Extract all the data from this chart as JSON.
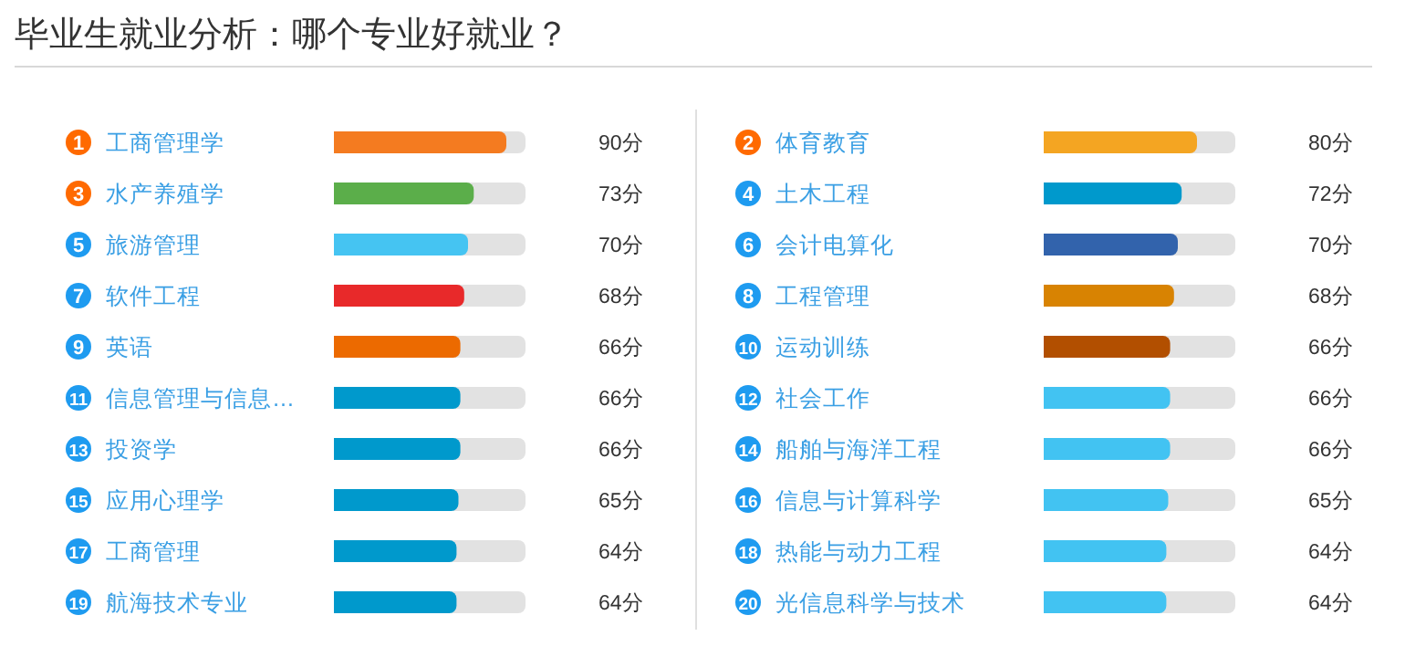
{
  "chart_data": [
    {
      "type": "bar",
      "orientation": "horizontal",
      "title": "毕业生就业分析：哪个专业好就业？",
      "categories": [
        "工商管理学",
        "水产养殖学",
        "旅游管理",
        "软件工程",
        "英语",
        "信息管理与信息…",
        "投资学",
        "应用心理学",
        "工商管理",
        "航海技术专业"
      ],
      "values": [
        90,
        73,
        70,
        68,
        66,
        66,
        66,
        65,
        64,
        64
      ],
      "value_labels": [
        "90分",
        "73分",
        "70分",
        "68分",
        "66分",
        "66分",
        "66分",
        "65分",
        "64分",
        "64分"
      ],
      "colors": [
        "#f47b20",
        "#5bae4a",
        "#45c4f2",
        "#e8292a",
        "#ec6a00",
        "#0099cc",
        "#0099cc",
        "#0099cc",
        "#0099cc",
        "#0099cc"
      ],
      "annotations": [
        "1",
        "3",
        "5",
        "7",
        "9",
        "11",
        "13",
        "15",
        "17",
        "19"
      ],
      "xlim": [
        0,
        100
      ],
      "tick_labels": "y"
    },
    {
      "type": "bar",
      "orientation": "horizontal",
      "categories": [
        "体育教育",
        "土木工程",
        "会计电算化",
        "工程管理",
        "运动训练",
        "社会工作",
        "船舶与海洋工程",
        "信息与计算科学",
        "热能与动力工程",
        "光信息科学与技术"
      ],
      "values": [
        80,
        72,
        70,
        68,
        66,
        66,
        66,
        65,
        64,
        64
      ],
      "value_labels": [
        "80分",
        "72分",
        "70分",
        "68分",
        "66分",
        "66分",
        "66分",
        "65分",
        "64分",
        "64分"
      ],
      "colors": [
        "#f4a522",
        "#0099cc",
        "#3263ac",
        "#d88302",
        "#b24f00",
        "#42c3f2",
        "#42c3f2",
        "#42c3f2",
        "#42c3f2",
        "#42c3f2"
      ],
      "annotations": [
        "2",
        "4",
        "6",
        "8",
        "10",
        "12",
        "14",
        "16",
        "18",
        "20"
      ],
      "xlim": [
        0,
        100
      ],
      "tick_labels": "y"
    }
  ]
}
